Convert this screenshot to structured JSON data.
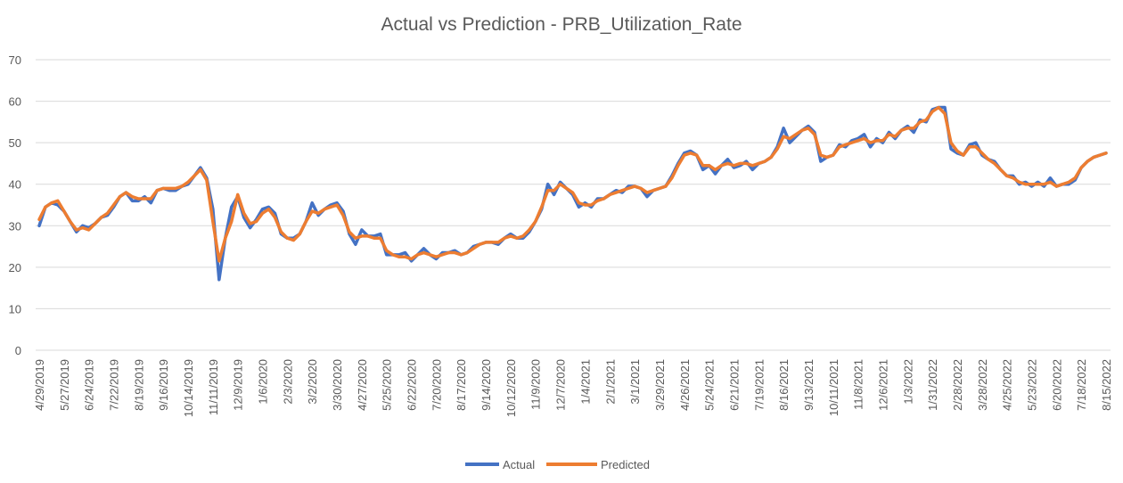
{
  "chart_data": {
    "type": "line",
    "title": "Actual vs Prediction - PRB_Utilization_Rate",
    "categories": [
      "4/29/2019",
      null,
      null,
      null,
      "5/27/2019",
      null,
      null,
      null,
      "6/24/2019",
      null,
      null,
      null,
      "7/22/2019",
      null,
      null,
      null,
      "8/19/2019",
      null,
      null,
      null,
      "9/16/2019",
      null,
      null,
      null,
      "10/14/2019",
      null,
      null,
      null,
      "11/11/2019",
      null,
      null,
      null,
      "12/9/2019",
      null,
      null,
      null,
      "1/6/2020",
      null,
      null,
      null,
      "2/3/2020",
      null,
      null,
      null,
      "3/2/2020",
      null,
      null,
      null,
      "3/30/2020",
      null,
      null,
      null,
      "4/27/2020",
      null,
      null,
      null,
      "5/25/2020",
      null,
      null,
      null,
      "6/22/2020",
      null,
      null,
      null,
      "7/20/2020",
      null,
      null,
      null,
      "8/17/2020",
      null,
      null,
      null,
      "9/14/2020",
      null,
      null,
      null,
      "10/12/2020",
      null,
      null,
      null,
      "11/9/2020",
      null,
      null,
      null,
      "12/7/2020",
      null,
      null,
      null,
      "1/4/2021",
      null,
      null,
      null,
      "2/1/2021",
      null,
      null,
      null,
      "3/1/2021",
      null,
      null,
      null,
      "3/29/2021",
      null,
      null,
      null,
      "4/26/2021",
      null,
      null,
      null,
      "5/24/2021",
      null,
      null,
      null,
      "6/21/2021",
      null,
      null,
      null,
      "7/19/2021",
      null,
      null,
      null,
      "8/16/2021",
      null,
      null,
      null,
      "9/13/2021",
      null,
      null,
      null,
      "10/11/2021",
      null,
      null,
      null,
      "11/8/2021",
      null,
      null,
      null,
      "12/6/2021",
      null,
      null,
      null,
      "1/3/2022",
      null,
      null,
      null,
      "1/31/2022",
      null,
      null,
      null,
      "2/28/2022",
      null,
      null,
      null,
      "3/28/2022",
      null,
      null,
      null,
      "4/25/2022",
      null,
      null,
      null,
      "5/23/2022",
      null,
      null,
      null,
      "6/20/2022",
      null,
      null,
      null,
      "7/18/2022",
      null,
      null,
      null,
      "8/15/2022"
    ],
    "series": [
      {
        "name": "Actual",
        "color": "#4472c4",
        "values": [
          30,
          34.5,
          35.5,
          35,
          33.5,
          31,
          28.5,
          30,
          29.5,
          30.5,
          32,
          32.5,
          34.5,
          37,
          38,
          36,
          36,
          37,
          35.5,
          38.5,
          39,
          38.5,
          38.5,
          39.5,
          40,
          42,
          44,
          41.5,
          34,
          17,
          27,
          34.5,
          37,
          32,
          29.5,
          31.5,
          34,
          34.5,
          33,
          28,
          27,
          27,
          28,
          31,
          35.5,
          32.5,
          34,
          35,
          35.5,
          33.5,
          28,
          25.5,
          29,
          27.5,
          27.5,
          28,
          23,
          23,
          23,
          23.5,
          21.5,
          23,
          24.5,
          23,
          22,
          23.5,
          23.5,
          24,
          23,
          23.5,
          25,
          25.5,
          26,
          26,
          25.5,
          27,
          28,
          27,
          27,
          28.5,
          31,
          34,
          40,
          37.5,
          40.5,
          39,
          37.5,
          34.5,
          35.5,
          34.5,
          36.5,
          36.5,
          37.5,
          38.5,
          38,
          39.5,
          39.5,
          39,
          37,
          38.5,
          39,
          39.5,
          42,
          45,
          47.5,
          48,
          47,
          43.5,
          44.5,
          42.5,
          44.5,
          46,
          44,
          44.5,
          45.5,
          43.5,
          45,
          45.5,
          46.5,
          49,
          53.5,
          50,
          51.5,
          53,
          54,
          52.5,
          45.5,
          46.5,
          47,
          49.5,
          49,
          50.5,
          51,
          52,
          49,
          51,
          50,
          52.5,
          51,
          53,
          54,
          52.5,
          55.5,
          55,
          58,
          58.5,
          58.5,
          48.5,
          47.5,
          47,
          49.5,
          50,
          47,
          46,
          45.5,
          43.5,
          42,
          42,
          40,
          40.5,
          39.5,
          40.5,
          39.5,
          41.5,
          39.5,
          40,
          40,
          41,
          44,
          45.5,
          46.5,
          47,
          47.5
        ]
      },
      {
        "name": "Predicted",
        "color": "#ed7d31",
        "values": [
          31.5,
          34.5,
          35.5,
          36,
          33.5,
          31,
          29,
          29.5,
          29,
          30.5,
          32,
          33,
          35,
          37,
          38,
          37,
          36.5,
          36.5,
          36.5,
          38.5,
          39,
          39,
          39,
          39.5,
          40.5,
          42,
          43.5,
          41,
          31,
          21.5,
          27,
          31,
          37.5,
          33,
          30.5,
          31,
          33,
          34,
          32,
          28.5,
          27,
          26.5,
          28,
          31,
          33.5,
          33,
          34,
          34.5,
          35,
          32.5,
          28.5,
          27,
          27.5,
          27.5,
          27,
          27,
          24,
          23,
          22.5,
          22.5,
          22,
          23,
          23.5,
          23,
          22.5,
          23,
          23.5,
          23.5,
          23,
          23.5,
          24.5,
          25.5,
          26,
          26,
          26,
          27,
          27.5,
          27,
          27.5,
          29,
          31,
          34.5,
          38.5,
          38.5,
          40,
          39,
          38,
          35.5,
          35,
          35,
          36,
          36.5,
          37.5,
          38,
          38.5,
          39,
          39.5,
          39,
          38,
          38.5,
          39,
          39.5,
          41.5,
          44.5,
          47,
          47.5,
          47,
          44.5,
          44.5,
          43.5,
          44.5,
          45,
          44.5,
          45,
          45,
          44.5,
          45,
          45.5,
          46.5,
          48.5,
          51.5,
          51,
          52,
          53,
          53.5,
          52,
          47,
          46.5,
          47,
          49,
          49.5,
          50,
          50.5,
          51,
          50,
          50.5,
          50.5,
          52,
          51.5,
          53,
          53.5,
          53.5,
          55,
          55.5,
          57.5,
          58.5,
          57,
          50,
          48,
          47,
          49,
          49,
          47.5,
          46,
          45,
          43.5,
          42,
          41.5,
          40.5,
          40,
          40,
          40,
          40,
          40.5,
          39.5,
          40,
          40.5,
          41.5,
          44,
          45.5,
          46.5,
          47,
          47.5
        ]
      }
    ],
    "ylim": [
      0,
      70
    ],
    "yticks": [
      0,
      10,
      20,
      30,
      40,
      50,
      60,
      70
    ],
    "grid": true,
    "legend": "bottom"
  }
}
